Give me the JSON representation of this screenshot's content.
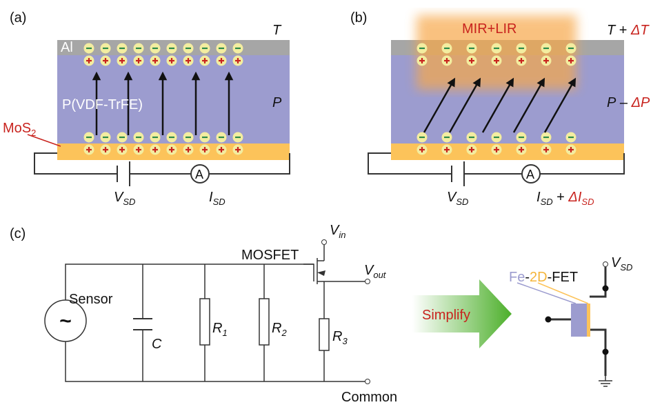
{
  "panels": {
    "a": {
      "label": "(a)",
      "top_layer": "Al",
      "ferroelectric": "P(VDF-TrFE)",
      "channel": {
        "base": "MoS",
        "sub": "2"
      },
      "temperature": "T",
      "polarization": "P",
      "voltage": {
        "base": "V",
        "sub": "SD"
      },
      "current": {
        "base": "I",
        "sub": "SD"
      },
      "ammeter": "A"
    },
    "b": {
      "label": "(b)",
      "illumination": "MIR+LIR",
      "temperature": {
        "base": "T",
        "op": " + ",
        "delta": "ΔT"
      },
      "polarization": {
        "base": "P",
        "op": " – ",
        "delta": "ΔP"
      },
      "voltage": {
        "base": "V",
        "sub": "SD"
      },
      "current": {
        "base": "I",
        "sub": "SD",
        "op": " + ",
        "delta": "ΔI",
        "delta_sub": "SD"
      },
      "ammeter": "A"
    },
    "c": {
      "label": "(c)",
      "source": "Sensor",
      "source_symbol": "~",
      "capacitor": "C",
      "resistors": [
        {
          "base": "R",
          "sub": "1"
        },
        {
          "base": "R",
          "sub": "2"
        },
        {
          "base": "R",
          "sub": "3"
        }
      ],
      "transistor": "MOSFET",
      "input": {
        "base": "V",
        "sub": "in"
      },
      "output": {
        "base": "V",
        "sub": "out"
      },
      "ground": "Common",
      "arrow": "Simplify",
      "device": {
        "part1": "Fe",
        "sep1": "-",
        "part2": "2D",
        "sep2": "-",
        "part3": "FET"
      },
      "device_supply": {
        "base": "V",
        "sub": "SD"
      }
    }
  }
}
